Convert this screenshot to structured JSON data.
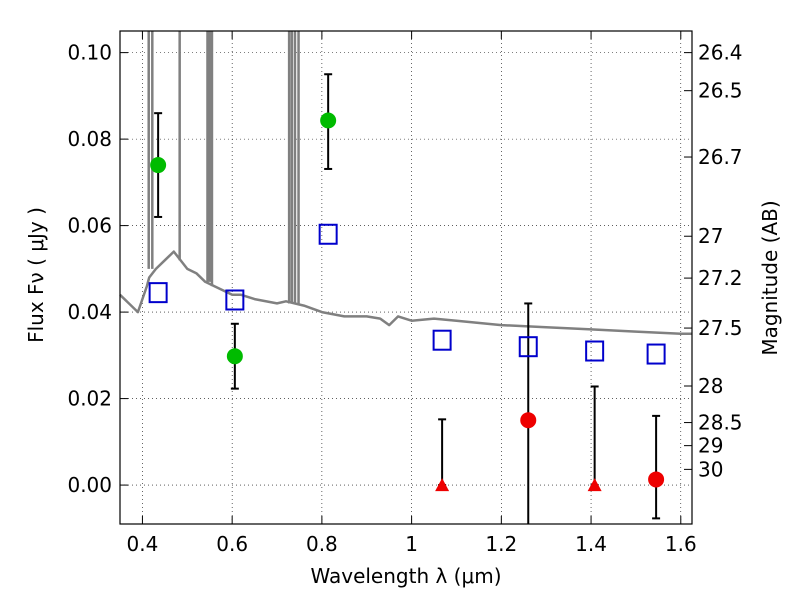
{
  "chart_data": {
    "type": "scatter",
    "xlabel": "Wavelength  λ (μm)",
    "ylabel": "Flux  Fν  ( μJy )",
    "ylabel_right": "Magnitude (AB)",
    "xlim": [
      0.35,
      1.625
    ],
    "ylim": [
      -0.009,
      0.105
    ],
    "grid": true,
    "x_ticks": [
      {
        "value": 0.4,
        "label": "0.4"
      },
      {
        "value": 0.6,
        "label": "0.6"
      },
      {
        "value": 0.8,
        "label": "0.8"
      },
      {
        "value": 1.0,
        "label": "1"
      },
      {
        "value": 1.2,
        "label": "1.2"
      },
      {
        "value": 1.4,
        "label": "1.4"
      },
      {
        "value": 1.6,
        "label": "1.6"
      }
    ],
    "y_ticks": [
      {
        "value": 0.0,
        "label": "0.00"
      },
      {
        "value": 0.02,
        "label": "0.02"
      },
      {
        "value": 0.04,
        "label": "0.04"
      },
      {
        "value": 0.06,
        "label": "0.06"
      },
      {
        "value": 0.08,
        "label": "0.08"
      },
      {
        "value": 0.1,
        "label": "0.10"
      }
    ],
    "right_ticks": [
      {
        "mag": 26.4,
        "label": "26.4"
      },
      {
        "mag": 26.5,
        "label": "26.5"
      },
      {
        "mag": 26.7,
        "label": "26.7"
      },
      {
        "mag": 27.0,
        "label": "27"
      },
      {
        "mag": 27.2,
        "label": "27.2"
      },
      {
        "mag": 27.5,
        "label": "27.5"
      },
      {
        "mag": 28.0,
        "label": "28"
      },
      {
        "mag": 28.5,
        "label": "28.5"
      },
      {
        "mag": 29.0,
        "label": "29"
      },
      {
        "mag": 30.0,
        "label": "30"
      }
    ],
    "colors": {
      "model": "#808080",
      "green": "#00bb00",
      "red": "#ee0000",
      "blue": "#0000cc"
    },
    "series": [
      {
        "marker": "line",
        "color": "#808080",
        "x": [
          0.35,
          0.39,
          0.41,
          0.415,
          0.43,
          0.45,
          0.47,
          0.5,
          0.52,
          0.54,
          0.56,
          0.6,
          0.62,
          0.65,
          0.7,
          0.72,
          0.76,
          0.8,
          0.85,
          0.9,
          0.93,
          0.95,
          0.97,
          1.0,
          1.05,
          1.1,
          1.2,
          1.3,
          1.4,
          1.5,
          1.6,
          1.625
        ],
        "y": [
          0.044,
          0.04,
          0.046,
          0.048,
          0.05,
          0.052,
          0.054,
          0.05,
          0.049,
          0.047,
          0.046,
          0.044,
          0.044,
          0.043,
          0.042,
          0.0425,
          0.0415,
          0.04,
          0.039,
          0.039,
          0.0385,
          0.037,
          0.039,
          0.038,
          0.0385,
          0.038,
          0.037,
          0.0365,
          0.036,
          0.0355,
          0.035,
          0.035
        ]
      },
      {
        "marker": "circle",
        "color": "#00bb00",
        "points": [
          {
            "x": 0.435,
            "y": 0.074,
            "yerr_low": 0.012,
            "yerr_high": 0.012
          },
          {
            "x": 0.606,
            "y": 0.0298,
            "yerr_low": 0.0075,
            "yerr_high": 0.0075
          },
          {
            "x": 0.814,
            "y": 0.0843,
            "yerr_low": 0.0112,
            "yerr_high": 0.0107
          }
        ]
      },
      {
        "marker": "circle",
        "color": "#ee0000",
        "points": [
          {
            "x": 1.26,
            "y": 0.015,
            "yerr_low": 0.024,
            "yerr_high": 0.027
          },
          {
            "x": 1.545,
            "y": 0.0013,
            "yerr_low": 0.009,
            "yerr_high": 0.0147
          }
        ]
      },
      {
        "marker": "triangle",
        "color": "#ee0000",
        "points": [
          {
            "x": 1.068,
            "y": 0.0,
            "yerr_low": 0.0,
            "yerr_high": 0.0152
          },
          {
            "x": 1.408,
            "y": 0.0,
            "yerr_low": 0.0,
            "yerr_high": 0.0228
          }
        ]
      },
      {
        "marker": "square",
        "color": "#0000cc",
        "points": [
          {
            "x": 0.435,
            "y": 0.0445
          },
          {
            "x": 0.606,
            "y": 0.0428
          },
          {
            "x": 0.814,
            "y": 0.058
          },
          {
            "x": 1.068,
            "y": 0.0335
          },
          {
            "x": 1.26,
            "y": 0.032
          },
          {
            "x": 1.408,
            "y": 0.031
          },
          {
            "x": 1.545,
            "y": 0.0303
          }
        ]
      }
    ],
    "spikes": [
      {
        "x": 0.414,
        "y_bottom": 0.05
      },
      {
        "x": 0.422,
        "y_bottom": 0.05
      },
      {
        "x": 0.483,
        "y_bottom": 0.052
      },
      {
        "x": 0.545,
        "y_bottom": 0.047
      },
      {
        "x": 0.55,
        "y_bottom": 0.047
      },
      {
        "x": 0.555,
        "y_bottom": 0.046
      },
      {
        "x": 0.727,
        "y_bottom": 0.042
      },
      {
        "x": 0.733,
        "y_bottom": 0.042
      },
      {
        "x": 0.74,
        "y_bottom": 0.042
      },
      {
        "x": 0.748,
        "y_bottom": 0.042
      }
    ]
  }
}
